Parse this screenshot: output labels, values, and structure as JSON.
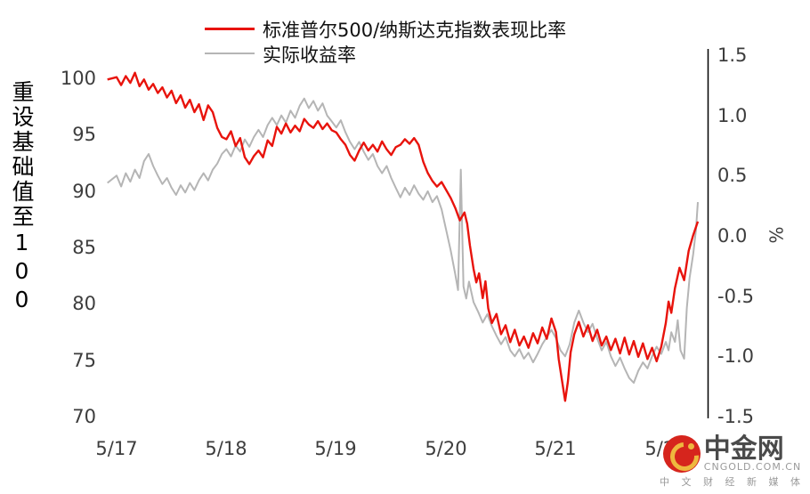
{
  "chart_data": {
    "type": "line",
    "title": "",
    "x_ticks": [
      "5/17",
      "5/18",
      "5/19",
      "5/20",
      "5/21",
      "5/22"
    ],
    "x_tick_months": [
      0,
      12,
      24,
      36,
      48,
      60
    ],
    "left_axis": {
      "label": "重设基础值至100",
      "ticks": [
        "100",
        "95",
        "90",
        "85",
        "80",
        "75",
        "70"
      ],
      "range": [
        70,
        100
      ]
    },
    "right_axis": {
      "label": "%",
      "ticks": [
        "1.5",
        "1.0",
        "0.5",
        "0.0",
        "-0.5",
        "-1.0",
        "-1.5"
      ],
      "range": [
        -1.5,
        1.5
      ]
    },
    "legend_position": "top",
    "grid": false,
    "series": [
      {
        "name": "标准普尔500/纳斯达克指数表现比率",
        "color": "#e8130c",
        "axis": "left",
        "points": [
          [
            -1,
            99.9
          ],
          [
            0,
            100.1
          ],
          [
            0.5,
            99.4
          ],
          [
            1,
            100.2
          ],
          [
            1.5,
            99.6
          ],
          [
            2,
            100.5
          ],
          [
            2.5,
            99.3
          ],
          [
            3,
            99.9
          ],
          [
            3.5,
            99.0
          ],
          [
            4,
            99.5
          ],
          [
            4.5,
            98.7
          ],
          [
            5,
            99.2
          ],
          [
            5.5,
            98.3
          ],
          [
            6,
            98.9
          ],
          [
            6.5,
            97.8
          ],
          [
            7,
            98.5
          ],
          [
            7.5,
            97.4
          ],
          [
            8,
            98.1
          ],
          [
            8.5,
            97.0
          ],
          [
            9,
            97.7
          ],
          [
            9.5,
            96.3
          ],
          [
            10,
            97.6
          ],
          [
            10.5,
            97.0
          ],
          [
            11,
            95.6
          ],
          [
            11.5,
            94.8
          ],
          [
            12,
            94.6
          ],
          [
            12.5,
            95.3
          ],
          [
            13,
            94.0
          ],
          [
            13.5,
            94.7
          ],
          [
            14,
            93.0
          ],
          [
            14.5,
            92.4
          ],
          [
            15,
            93.1
          ],
          [
            15.5,
            93.6
          ],
          [
            16,
            93.0
          ],
          [
            16.5,
            94.5
          ],
          [
            17,
            94.0
          ],
          [
            17.5,
            95.7
          ],
          [
            18,
            95.1
          ],
          [
            18.5,
            96.0
          ],
          [
            19,
            95.2
          ],
          [
            19.5,
            95.8
          ],
          [
            20,
            95.3
          ],
          [
            20.5,
            96.4
          ],
          [
            21,
            95.9
          ],
          [
            21.5,
            95.6
          ],
          [
            22,
            96.2
          ],
          [
            22.5,
            95.5
          ],
          [
            23,
            96.0
          ],
          [
            23.5,
            95.4
          ],
          [
            24,
            95.2
          ],
          [
            24.5,
            94.6
          ],
          [
            25,
            94.1
          ],
          [
            25.5,
            93.2
          ],
          [
            26,
            92.7
          ],
          [
            26.5,
            93.6
          ],
          [
            27,
            94.3
          ],
          [
            27.5,
            93.6
          ],
          [
            28,
            94.1
          ],
          [
            28.5,
            93.5
          ],
          [
            29,
            94.4
          ],
          [
            29.5,
            93.7
          ],
          [
            30,
            93.2
          ],
          [
            30.5,
            93.9
          ],
          [
            31,
            94.1
          ],
          [
            31.5,
            94.6
          ],
          [
            32,
            94.2
          ],
          [
            32.5,
            94.7
          ],
          [
            33,
            94.1
          ],
          [
            33.5,
            92.6
          ],
          [
            34,
            91.6
          ],
          [
            34.5,
            90.9
          ],
          [
            35,
            90.4
          ],
          [
            35.5,
            90.8
          ],
          [
            36,
            90.1
          ],
          [
            36.5,
            89.4
          ],
          [
            37,
            88.5
          ],
          [
            37.5,
            87.4
          ],
          [
            38,
            88.1
          ],
          [
            38.3,
            87.1
          ],
          [
            38.6,
            85.2
          ],
          [
            39,
            83.1
          ],
          [
            39.3,
            81.9
          ],
          [
            39.6,
            82.7
          ],
          [
            40,
            80.5
          ],
          [
            40.3,
            82.0
          ],
          [
            40.6,
            79.6
          ],
          [
            41,
            78.3
          ],
          [
            41.5,
            79.1
          ],
          [
            42,
            77.3
          ],
          [
            42.5,
            78.1
          ],
          [
            43,
            76.6
          ],
          [
            43.5,
            77.7
          ],
          [
            44,
            76.3
          ],
          [
            44.5,
            77.1
          ],
          [
            45,
            76.1
          ],
          [
            45.5,
            77.4
          ],
          [
            46,
            76.5
          ],
          [
            46.5,
            77.9
          ],
          [
            47,
            76.9
          ],
          [
            47.5,
            78.7
          ],
          [
            48,
            77.5
          ],
          [
            48.3,
            75.1
          ],
          [
            48.6,
            73.5
          ],
          [
            49,
            71.4
          ],
          [
            49.3,
            73.1
          ],
          [
            49.6,
            75.7
          ],
          [
            50,
            77.3
          ],
          [
            50.5,
            78.4
          ],
          [
            51,
            77.1
          ],
          [
            51.5,
            78.1
          ],
          [
            52,
            76.7
          ],
          [
            52.5,
            77.7
          ],
          [
            53,
            76.3
          ],
          [
            53.5,
            77.1
          ],
          [
            54,
            75.9
          ],
          [
            54.5,
            76.9
          ],
          [
            55,
            75.6
          ],
          [
            55.5,
            77.0
          ],
          [
            56,
            75.5
          ],
          [
            56.5,
            76.7
          ],
          [
            57,
            75.3
          ],
          [
            57.5,
            76.5
          ],
          [
            58,
            75.1
          ],
          [
            58.5,
            76.1
          ],
          [
            59,
            74.9
          ],
          [
            59.5,
            76.2
          ],
          [
            60,
            78.3
          ],
          [
            60.3,
            80.2
          ],
          [
            60.6,
            79.2
          ],
          [
            61,
            81.4
          ],
          [
            61.5,
            83.2
          ],
          [
            62,
            82.1
          ],
          [
            62.5,
            84.7
          ],
          [
            63,
            86.1
          ],
          [
            63.5,
            87.3
          ]
        ]
      },
      {
        "name": "实际收益率",
        "color": "#b5b5b5",
        "axis": "right",
        "points": [
          [
            -1,
            0.44
          ],
          [
            0,
            0.5
          ],
          [
            0.5,
            0.41
          ],
          [
            1,
            0.52
          ],
          [
            1.5,
            0.45
          ],
          [
            2,
            0.55
          ],
          [
            2.5,
            0.48
          ],
          [
            3,
            0.62
          ],
          [
            3.5,
            0.68
          ],
          [
            4,
            0.58
          ],
          [
            4.5,
            0.5
          ],
          [
            5,
            0.43
          ],
          [
            5.5,
            0.48
          ],
          [
            6,
            0.4
          ],
          [
            6.5,
            0.34
          ],
          [
            7,
            0.42
          ],
          [
            7.5,
            0.36
          ],
          [
            8,
            0.44
          ],
          [
            8.5,
            0.38
          ],
          [
            9,
            0.46
          ],
          [
            9.5,
            0.52
          ],
          [
            10,
            0.46
          ],
          [
            10.5,
            0.55
          ],
          [
            11,
            0.6
          ],
          [
            11.5,
            0.68
          ],
          [
            12,
            0.72
          ],
          [
            12.5,
            0.66
          ],
          [
            13,
            0.75
          ],
          [
            13.5,
            0.7
          ],
          [
            14,
            0.8
          ],
          [
            14.5,
            0.74
          ],
          [
            15,
            0.82
          ],
          [
            15.5,
            0.88
          ],
          [
            16,
            0.82
          ],
          [
            16.5,
            0.92
          ],
          [
            17,
            0.98
          ],
          [
            17.5,
            0.92
          ],
          [
            18,
            1.0
          ],
          [
            18.5,
            0.94
          ],
          [
            19,
            1.04
          ],
          [
            19.5,
            0.98
          ],
          [
            20,
            1.08
          ],
          [
            20.5,
            1.14
          ],
          [
            21,
            1.06
          ],
          [
            21.5,
            1.12
          ],
          [
            22,
            1.04
          ],
          [
            22.5,
            1.1
          ],
          [
            23,
            1.0
          ],
          [
            23.5,
            0.95
          ],
          [
            24,
            0.9
          ],
          [
            24.5,
            0.96
          ],
          [
            25,
            0.86
          ],
          [
            25.5,
            0.78
          ],
          [
            26,
            0.72
          ],
          [
            26.5,
            0.78
          ],
          [
            27,
            0.7
          ],
          [
            27.5,
            0.63
          ],
          [
            28,
            0.68
          ],
          [
            28.5,
            0.58
          ],
          [
            29,
            0.52
          ],
          [
            29.5,
            0.58
          ],
          [
            30,
            0.48
          ],
          [
            30.5,
            0.4
          ],
          [
            31,
            0.32
          ],
          [
            31.5,
            0.4
          ],
          [
            32,
            0.34
          ],
          [
            32.5,
            0.42
          ],
          [
            33,
            0.35
          ],
          [
            33.5,
            0.3
          ],
          [
            34,
            0.37
          ],
          [
            34.5,
            0.28
          ],
          [
            35,
            0.33
          ],
          [
            35.5,
            0.22
          ],
          [
            36,
            0.05
          ],
          [
            36.5,
            -0.12
          ],
          [
            37,
            -0.32
          ],
          [
            37.3,
            -0.45
          ],
          [
            37.6,
            0.55
          ],
          [
            37.9,
            -0.42
          ],
          [
            38.2,
            -0.52
          ],
          [
            38.5,
            -0.38
          ],
          [
            39,
            -0.55
          ],
          [
            39.5,
            -0.63
          ],
          [
            40,
            -0.72
          ],
          [
            40.5,
            -0.65
          ],
          [
            41,
            -0.75
          ],
          [
            41.5,
            -0.83
          ],
          [
            42,
            -0.9
          ],
          [
            42.5,
            -0.84
          ],
          [
            43,
            -0.95
          ],
          [
            43.5,
            -1.0
          ],
          [
            44,
            -0.94
          ],
          [
            44.5,
            -1.02
          ],
          [
            45,
            -0.97
          ],
          [
            45.5,
            -1.05
          ],
          [
            46,
            -0.98
          ],
          [
            46.5,
            -0.9
          ],
          [
            47,
            -0.84
          ],
          [
            47.5,
            -0.78
          ],
          [
            48,
            -0.85
          ],
          [
            48.5,
            -0.95
          ],
          [
            49,
            -1.0
          ],
          [
            49.5,
            -0.9
          ],
          [
            50,
            -0.72
          ],
          [
            50.5,
            -0.62
          ],
          [
            51,
            -0.72
          ],
          [
            51.5,
            -0.8
          ],
          [
            52,
            -0.73
          ],
          [
            52.5,
            -0.85
          ],
          [
            53,
            -0.95
          ],
          [
            53.5,
            -0.88
          ],
          [
            54,
            -1.0
          ],
          [
            54.5,
            -1.08
          ],
          [
            55,
            -1.01
          ],
          [
            55.5,
            -1.1
          ],
          [
            56,
            -1.18
          ],
          [
            56.5,
            -1.22
          ],
          [
            57,
            -1.12
          ],
          [
            57.5,
            -1.05
          ],
          [
            58,
            -1.1
          ],
          [
            58.5,
            -1.0
          ],
          [
            59,
            -0.92
          ],
          [
            59.5,
            -0.98
          ],
          [
            60,
            -0.88
          ],
          [
            60.3,
            -0.95
          ],
          [
            60.6,
            -0.8
          ],
          [
            61,
            -0.88
          ],
          [
            61.3,
            -0.7
          ],
          [
            61.6,
            -0.95
          ],
          [
            62,
            -1.02
          ],
          [
            62.3,
            -0.6
          ],
          [
            62.6,
            -0.35
          ],
          [
            63,
            -0.15
          ],
          [
            63.3,
            0.05
          ],
          [
            63.5,
            0.28
          ]
        ]
      }
    ]
  },
  "watermark": {
    "brand": "中金网",
    "domain": "CNGOLD.COM.CN",
    "tagline": "中 文 财 经 新 媒 体",
    "logo_icon": "gold-coin-swirl-icon",
    "logo_red": "#d6251d",
    "logo_gold": "#eeb83e"
  }
}
